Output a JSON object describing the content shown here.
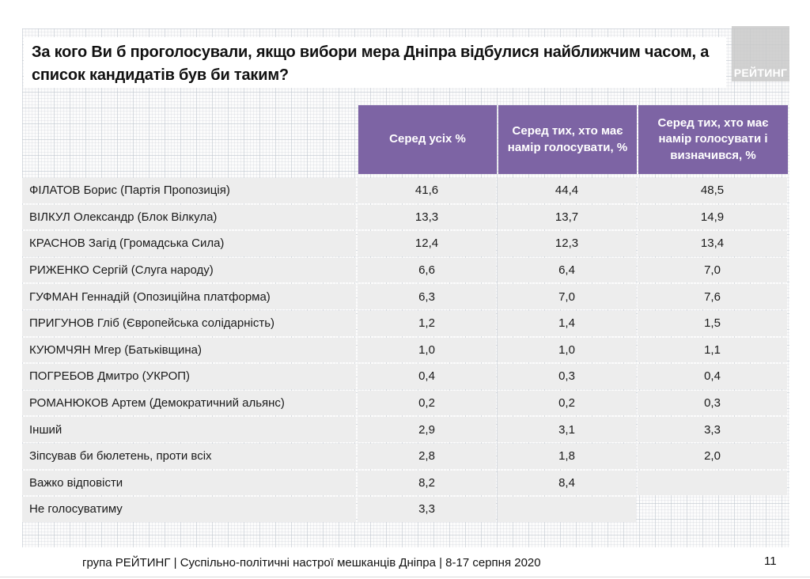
{
  "slide": {
    "title_lines": [
      "За кого Ви б проголосували, якщо вибори мера Дніпра відбулися найближчим часом, а",
      "список кандидатів був би таким?"
    ],
    "logo_text": "РЕЙТИНГ",
    "footer": "група РЕЙТИНГ | Суспільно-політичні настрої мешканців Дніпра | 8-17 серпня 2020",
    "page_number": "11"
  },
  "colors": {
    "header_purple": "#7d64a4",
    "row_gray": "#ededed",
    "logo_gray": "#c9c9c9"
  },
  "chart_data": {
    "type": "table",
    "title": "За кого Ви б проголосували, якщо вибори мера Дніпра відбулися найближчим часом, а список кандидатів був би таким?",
    "columns": [
      "Серед усіх %",
      "Серед тих, хто має намір голосувати, %",
      "Серед тих, хто має намір голосувати і визначився, %"
    ],
    "rows": [
      {
        "label": "ФІЛАТОВ Борис (Партія Пропозиція)",
        "values": [
          "41,6",
          "44,4",
          "48,5"
        ]
      },
      {
        "label": "ВІЛКУЛ Олександр (Блок Вілкула)",
        "values": [
          "13,3",
          "13,7",
          "14,9"
        ]
      },
      {
        "label": "КРАСНОВ Загід (Громадська Сила)",
        "values": [
          "12,4",
          "12,3",
          "13,4"
        ]
      },
      {
        "label": "РИЖЕНКО Сергій (Слуга народу)",
        "values": [
          "6,6",
          "6,4",
          "7,0"
        ]
      },
      {
        "label": "ГУФМАН Геннадій (Опозиційна платформа)",
        "values": [
          "6,3",
          "7,0",
          "7,6"
        ]
      },
      {
        "label": "ПРИГУНОВ Гліб (Європейська солідарність)",
        "values": [
          "1,2",
          "1,4",
          "1,5"
        ]
      },
      {
        "label": "КУЮМЧЯН Мгер (Батьківщина)",
        "values": [
          "1,0",
          "1,0",
          "1,1"
        ]
      },
      {
        "label": "ПОГРЕБОВ Дмитро (УКРОП)",
        "values": [
          "0,4",
          "0,3",
          "0,4"
        ]
      },
      {
        "label": "РОМАНЮКОВ Артем (Демократичний альянс)",
        "values": [
          "0,2",
          "0,2",
          "0,3"
        ]
      },
      {
        "label": "Інший",
        "values": [
          "2,9",
          "3,1",
          "3,3"
        ]
      },
      {
        "label": "Зіпсував би бюлетень, проти всіх",
        "values": [
          "2,8",
          "1,8",
          "2,0"
        ]
      },
      {
        "label": "Важко відповісти",
        "values": [
          "8,2",
          "8,4",
          ""
        ]
      },
      {
        "label": "Не голосуватиму",
        "values": [
          "3,3",
          "",
          null
        ]
      }
    ]
  }
}
